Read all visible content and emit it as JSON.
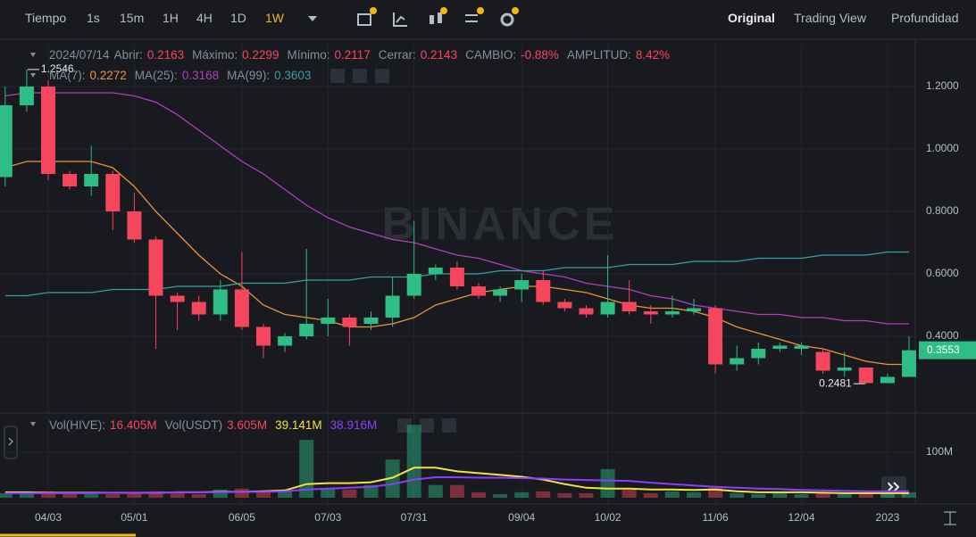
{
  "toolbar": {
    "intervals": [
      "Tiempo",
      "1s",
      "15m",
      "1H",
      "4H",
      "1D",
      "1W"
    ],
    "active_interval": 6,
    "views": [
      "Original",
      "Trading View",
      "Profundidad"
    ],
    "active_view": 0
  },
  "ohlc_legend": {
    "date": "2024/07/14",
    "fields": [
      {
        "label": "Abrir:",
        "value": "0.2163"
      },
      {
        "label": "Máximo:",
        "value": "0.2299"
      },
      {
        "label": "Mínimo:",
        "value": "0.2117"
      },
      {
        "label": "Cerrar:",
        "value": "0.2143"
      },
      {
        "label": "CAMBIO:",
        "value": "-0.88%"
      },
      {
        "label": "AMPLITUD:",
        "value": "8.42%"
      }
    ]
  },
  "watermark": "BINANCE",
  "chart_data": [
    {
      "type": "candlestick",
      "categories": [
        null,
        null,
        "04/03",
        null,
        null,
        null,
        "05/01",
        null,
        null,
        null,
        null,
        "06/05",
        null,
        null,
        null,
        "07/03",
        null,
        null,
        null,
        "07/31",
        null,
        null,
        null,
        null,
        "09/04",
        null,
        null,
        null,
        "10/02",
        null,
        null,
        null,
        null,
        "11/06",
        null,
        null,
        null,
        "12/04",
        null,
        null,
        null,
        "2023",
        null
      ],
      "open": [
        0.91,
        1.14,
        1.2,
        0.92,
        0.88,
        0.92,
        0.8,
        0.71,
        0.53,
        0.51,
        0.47,
        0.55,
        0.43,
        0.37,
        0.4,
        0.44,
        0.46,
        0.44,
        0.46,
        0.53,
        0.6,
        0.62,
        0.56,
        0.53,
        0.55,
        0.58,
        0.51,
        0.49,
        0.47,
        0.51,
        0.48,
        0.47,
        0.48,
        0.49,
        0.31,
        0.33,
        0.36,
        0.36,
        0.35,
        0.29,
        0.3,
        0.25,
        0.27
      ],
      "high": [
        1.2,
        1.2546,
        1.22,
        0.93,
        1.01,
        0.93,
        0.86,
        0.72,
        0.54,
        0.53,
        0.58,
        0.67,
        0.44,
        0.41,
        0.68,
        0.52,
        0.47,
        0.48,
        0.59,
        0.77,
        0.63,
        0.64,
        0.57,
        0.56,
        0.6,
        0.61,
        0.52,
        0.5,
        0.66,
        0.58,
        0.5,
        0.53,
        0.52,
        0.5,
        0.37,
        0.38,
        0.38,
        0.38,
        0.36,
        0.35,
        0.3,
        0.28,
        0.4
      ],
      "low": [
        0.88,
        1.12,
        0.9,
        0.87,
        0.85,
        0.74,
        0.7,
        0.36,
        0.42,
        0.45,
        0.45,
        0.42,
        0.33,
        0.35,
        0.39,
        0.4,
        0.37,
        0.42,
        0.43,
        0.52,
        0.58,
        0.55,
        0.52,
        0.51,
        0.51,
        0.5,
        0.48,
        0.46,
        0.46,
        0.47,
        0.44,
        0.46,
        0.47,
        0.28,
        0.29,
        0.31,
        0.35,
        0.34,
        0.28,
        0.27,
        0.2481,
        0.25,
        0.27
      ],
      "close": [
        1.14,
        1.2,
        0.92,
        0.88,
        0.92,
        0.8,
        0.71,
        0.53,
        0.51,
        0.47,
        0.55,
        0.43,
        0.37,
        0.4,
        0.44,
        0.46,
        0.43,
        0.46,
        0.53,
        0.6,
        0.62,
        0.56,
        0.53,
        0.55,
        0.58,
        0.51,
        0.49,
        0.47,
        0.51,
        0.48,
        0.47,
        0.48,
        0.49,
        0.31,
        0.33,
        0.36,
        0.37,
        0.37,
        0.29,
        0.3,
        0.25,
        0.27,
        0.3553
      ],
      "up_color": "#2ebd85",
      "down_color": "#f6465d",
      "series": [
        {
          "name": "MA(7):",
          "last_label": "0.2272",
          "color": "#e8943a",
          "values": [
            0.94,
            0.96,
            0.96,
            0.96,
            0.96,
            0.94,
            0.88,
            0.8,
            0.73,
            0.66,
            0.6,
            0.56,
            0.5,
            0.47,
            0.46,
            0.45,
            0.43,
            0.43,
            0.44,
            0.46,
            0.5,
            0.52,
            0.54,
            0.55,
            0.56,
            0.56,
            0.55,
            0.54,
            0.52,
            0.5,
            0.49,
            0.49,
            0.48,
            0.46,
            0.43,
            0.41,
            0.39,
            0.37,
            0.36,
            0.34,
            0.32,
            0.31,
            0.31
          ]
        },
        {
          "name": "MA(25):",
          "last_label": "0.3168",
          "color": "#b03fc0",
          "values": [
            1.17,
            1.18,
            1.18,
            1.18,
            1.18,
            1.18,
            1.17,
            1.15,
            1.11,
            1.06,
            1.01,
            0.96,
            0.92,
            0.87,
            0.82,
            0.78,
            0.75,
            0.73,
            0.71,
            0.7,
            0.68,
            0.66,
            0.65,
            0.63,
            0.61,
            0.6,
            0.59,
            0.57,
            0.56,
            0.55,
            0.53,
            0.52,
            0.5,
            0.49,
            0.48,
            0.47,
            0.47,
            0.46,
            0.46,
            0.45,
            0.45,
            0.44,
            0.44
          ]
        },
        {
          "name": "MA(99):",
          "last_label": "0.3603",
          "color": "#3a9ea0",
          "values": [
            0.53,
            0.53,
            0.54,
            0.54,
            0.54,
            0.55,
            0.55,
            0.55,
            0.56,
            0.56,
            0.56,
            0.57,
            0.57,
            0.57,
            0.58,
            0.58,
            0.58,
            0.59,
            0.59,
            0.59,
            0.6,
            0.6,
            0.6,
            0.61,
            0.61,
            0.61,
            0.62,
            0.62,
            0.62,
            0.63,
            0.63,
            0.63,
            0.64,
            0.64,
            0.64,
            0.65,
            0.65,
            0.65,
            0.66,
            0.66,
            0.66,
            0.67,
            0.67
          ]
        }
      ],
      "ylim": [
        0.16,
        1.33
      ],
      "yticks": [
        {
          "value": 0.4,
          "label": "0.4000"
        },
        {
          "value": 0.6,
          "label": "0.6000"
        },
        {
          "value": 0.8,
          "label": "0.8000"
        },
        {
          "value": 1.0,
          "label": "1.0000"
        },
        {
          "value": 1.2,
          "label": "1.2000"
        }
      ],
      "grid": true,
      "max_marker": {
        "value": 1.2546,
        "label": "1.2546"
      },
      "min_marker": {
        "value": 0.2481,
        "label": "0.2481"
      },
      "last_price": {
        "value": 0.3553,
        "label": "0.3553"
      }
    },
    {
      "type": "bar",
      "name": "Vol(HIVE):",
      "value_label": "16.405M",
      "quote_name": "Vol(USDT)",
      "quote_label": "3.605M",
      "values": [
        10,
        12,
        14,
        10,
        8,
        8,
        10,
        14,
        12,
        8,
        18,
        20,
        12,
        14,
        127,
        20,
        18,
        28,
        84,
        160,
        28,
        28,
        12,
        8,
        12,
        14,
        10,
        10,
        63,
        18,
        10,
        14,
        12,
        22,
        10,
        8,
        10,
        8,
        12,
        8,
        10,
        8,
        12
      ],
      "series": [
        {
          "last_label": "39.141M",
          "color": "#f0e442",
          "values": [
            12,
            12,
            11,
            11,
            11,
            11,
            11,
            11,
            12,
            12,
            13,
            13,
            14,
            16,
            30,
            32,
            32,
            34,
            44,
            66,
            66,
            58,
            54,
            50,
            46,
            40,
            30,
            22,
            20,
            20,
            18,
            18,
            17,
            18,
            14,
            12,
            12,
            12,
            11,
            10,
            10,
            10,
            10
          ]
        },
        {
          "last_label": "38.916M",
          "color": "#8a3ffc",
          "values": [
            10,
            10,
            10,
            10,
            10,
            11,
            11,
            11,
            12,
            12,
            12,
            13,
            13,
            14,
            18,
            20,
            22,
            24,
            30,
            40,
            45,
            45,
            44,
            44,
            43,
            42,
            40,
            39,
            38,
            37,
            33,
            30,
            27,
            24,
            22,
            20,
            19,
            17,
            16,
            15,
            14,
            14,
            14
          ]
        }
      ],
      "ylim": [
        0,
        180
      ],
      "yticks": [
        {
          "value": 100,
          "label": "100M"
        }
      ],
      "grid": true
    }
  ]
}
